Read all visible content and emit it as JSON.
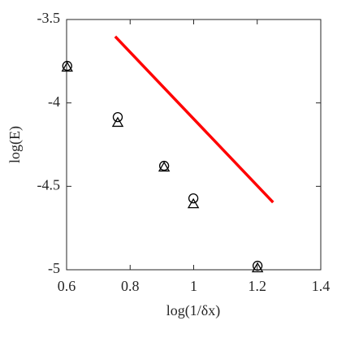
{
  "chart_data": {
    "type": "scatter",
    "xlabel": "log(1/δx)",
    "ylabel": "log(E)",
    "xlim": [
      0.6,
      1.4
    ],
    "ylim": [
      -5,
      -3.5
    ],
    "xticks": [
      0.6,
      0.8,
      1,
      1.2,
      1.4
    ],
    "yticks": [
      -5,
      -4.5,
      -4,
      -3.5
    ],
    "series": [
      {
        "marker": "circle",
        "color": "#000000",
        "x": [
          0.602,
          0.761,
          0.907,
          0.999,
          1.201
        ],
        "values": [
          -3.778,
          -4.085,
          -4.377,
          -4.572,
          -4.976
        ]
      },
      {
        "marker": "triangle",
        "color": "#000000",
        "x": [
          0.602,
          0.761,
          0.907,
          0.999,
          1.201
        ],
        "values": [
          -3.792,
          -4.123,
          -4.391,
          -4.611,
          -4.995
        ]
      },
      {
        "marker": "line",
        "color": "#ff0000",
        "x": [
          0.753,
          1.25
        ],
        "values": [
          -3.602,
          -4.596
        ]
      }
    ]
  }
}
